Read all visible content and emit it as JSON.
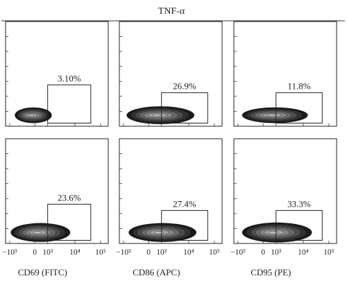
{
  "chart_data": {
    "type": "contour",
    "header": "TNF-α",
    "x_ticks": [
      "−10³",
      "0",
      "10³",
      "10⁴",
      "10⁵"
    ],
    "xlabels": [
      "CD69 (FITC)",
      "CD86 (APC)",
      "CD95 (PE)"
    ],
    "panels": [
      {
        "row": 0,
        "col": 0,
        "marker": "CD69 (FITC)",
        "gate_percent": "3.10%",
        "gate_value": 3.1
      },
      {
        "row": 0,
        "col": 1,
        "marker": "CD86 (APC)",
        "gate_percent": "26.9%",
        "gate_value": 26.9
      },
      {
        "row": 0,
        "col": 2,
        "marker": "CD95 (PE)",
        "gate_percent": "11.8%",
        "gate_value": 11.8
      },
      {
        "row": 1,
        "col": 0,
        "marker": "CD69 (FITC)",
        "gate_percent": "23.6%",
        "gate_value": 23.6
      },
      {
        "row": 1,
        "col": 1,
        "marker": "CD86 (APC)",
        "gate_percent": "27.4%",
        "gate_value": 27.4
      },
      {
        "row": 1,
        "col": 2,
        "marker": "CD95 (PE)",
        "gate_percent": "33.3%",
        "gate_value": 33.3
      }
    ]
  }
}
